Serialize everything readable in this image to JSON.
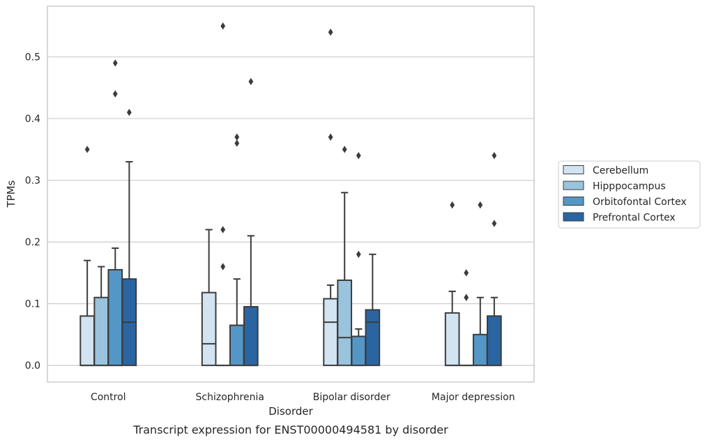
{
  "caption": "Transcript expression for ENST00000494581 by disorder",
  "chart_data": {
    "type": "box",
    "xlabel": "Disorder",
    "ylabel": "TPMs",
    "ylim": [
      -0.027,
      0.582
    ],
    "yticks": [
      "0.0",
      "0.1",
      "0.2",
      "0.3",
      "0.4",
      "0.5"
    ],
    "grid": "horizontal",
    "legend_placement": "right",
    "categories": [
      "Control",
      "Schizophrenia",
      "Bipolar disorder",
      "Major depression"
    ],
    "series": [
      {
        "name": "Cerebellum",
        "color": "#d2e3f2",
        "boxes": [
          {
            "q1": 0,
            "median": 0,
            "q3": 0.08,
            "whisker_low": 0,
            "whisker_high": 0.17,
            "outliers": [
              0.35
            ]
          },
          {
            "q1": 0,
            "median": 0.035,
            "q3": 0.118,
            "whisker_low": 0,
            "whisker_high": 0.22,
            "outliers": []
          },
          {
            "q1": 0,
            "median": 0.07,
            "q3": 0.108,
            "whisker_low": 0,
            "whisker_high": 0.13,
            "outliers": [
              0.54,
              0.37
            ]
          },
          {
            "q1": 0,
            "median": 0,
            "q3": 0.085,
            "whisker_low": 0,
            "whisker_high": 0.12,
            "outliers": [
              0.26
            ]
          }
        ]
      },
      {
        "name": "Hipppocampus",
        "color": "#9ac3dd",
        "boxes": [
          {
            "q1": 0,
            "median": 0,
            "q3": 0.11,
            "whisker_low": 0,
            "whisker_high": 0.16,
            "outliers": []
          },
          {
            "q1": 0,
            "median": 0,
            "q3": 0,
            "whisker_low": 0,
            "whisker_high": 0,
            "outliers": [
              0.55,
              0.22,
              0.16
            ]
          },
          {
            "q1": 0,
            "median": 0.045,
            "q3": 0.138,
            "whisker_low": 0,
            "whisker_high": 0.28,
            "outliers": [
              0.35
            ]
          },
          {
            "q1": 0,
            "median": 0,
            "q3": 0,
            "whisker_low": 0,
            "whisker_high": 0,
            "outliers": [
              0.15,
              0.11
            ]
          }
        ]
      },
      {
        "name": "Orbitofontal Cortex",
        "color": "#5497c6",
        "boxes": [
          {
            "q1": 0,
            "median": 0,
            "q3": 0.155,
            "whisker_low": 0,
            "whisker_high": 0.19,
            "outliers": [
              0.49,
              0.44
            ]
          },
          {
            "q1": 0,
            "median": 0,
            "q3": 0.065,
            "whisker_low": 0,
            "whisker_high": 0.14,
            "outliers": [
              0.37,
              0.36
            ]
          },
          {
            "q1": 0,
            "median": 0,
            "q3": 0.047,
            "whisker_low": 0,
            "whisker_high": 0.059,
            "outliers": [
              0.34,
              0.18
            ]
          },
          {
            "q1": 0,
            "median": 0,
            "q3": 0.05,
            "whisker_low": 0,
            "whisker_high": 0.11,
            "outliers": [
              0.26
            ]
          }
        ]
      },
      {
        "name": "Prefrontal Cortex",
        "color": "#2a65a2",
        "boxes": [
          {
            "q1": 0,
            "median": 0.07,
            "q3": 0.14,
            "whisker_low": 0,
            "whisker_high": 0.33,
            "outliers": [
              0.41
            ]
          },
          {
            "q1": 0,
            "median": 0,
            "q3": 0.095,
            "whisker_low": 0,
            "whisker_high": 0.21,
            "outliers": [
              0.46
            ]
          },
          {
            "q1": 0,
            "median": 0.07,
            "q3": 0.09,
            "whisker_low": 0,
            "whisker_high": 0.18,
            "outliers": []
          },
          {
            "q1": 0,
            "median": 0,
            "q3": 0.08,
            "whisker_low": 0,
            "whisker_high": 0.11,
            "outliers": [
              0.34,
              0.23
            ]
          }
        ]
      }
    ]
  }
}
